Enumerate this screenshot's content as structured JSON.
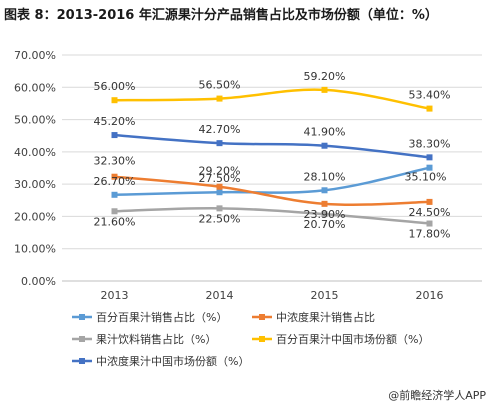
{
  "title": "图表 8：2013-2016 年汇源果汁分产品销售占比及市场份额（单位：%）",
  "watermark": "@前瞻经济学人APP",
  "chart_data": {
    "type": "line",
    "title": "图表 8：2013-2016 年汇源果汁分产品销售占比及市场份额（单位：%）",
    "categories": [
      "2013",
      "2014",
      "2015",
      "2016"
    ],
    "ylim": [
      0,
      70
    ],
    "yticks": [
      "0.00%",
      "10.00%",
      "20.00%",
      "30.00%",
      "40.00%",
      "50.00%",
      "60.00%",
      "70.00%"
    ],
    "grid": true,
    "legend_position": "bottom",
    "series": [
      {
        "name": "百分百果汁销售占比（%）",
        "color": "#5b9bd5",
        "values": [
          26.7,
          27.5,
          28.1,
          35.1
        ],
        "labels": [
          "26.70%",
          "27.50%",
          "28.10%",
          "35.10%"
        ]
      },
      {
        "name": "中浓度果汁销售占比",
        "color": "#ed7d31",
        "values": [
          32.3,
          29.2,
          23.9,
          24.5
        ],
        "labels": [
          "32.30%",
          "29.20%",
          "23.90%",
          "24.50%"
        ]
      },
      {
        "name": "果汁饮料销售占比（%）",
        "color": "#a5a5a5",
        "values": [
          21.6,
          22.5,
          20.7,
          17.8
        ],
        "labels": [
          "21.60%",
          "22.50%",
          "20.70%",
          "17.80%"
        ]
      },
      {
        "name": "百分百果汁中国市场份额（%）",
        "color": "#ffc000",
        "values": [
          56.0,
          56.5,
          59.2,
          53.4
        ],
        "labels": [
          "56.00%",
          "56.50%",
          "59.20%",
          "53.40%"
        ]
      },
      {
        "name": "中浓度果汁中国市场份额（%）",
        "color": "#4472c4",
        "values": [
          45.2,
          42.7,
          41.9,
          38.3
        ],
        "labels": [
          "45.20%",
          "42.70%",
          "41.90%",
          "38.30%"
        ]
      }
    ]
  }
}
